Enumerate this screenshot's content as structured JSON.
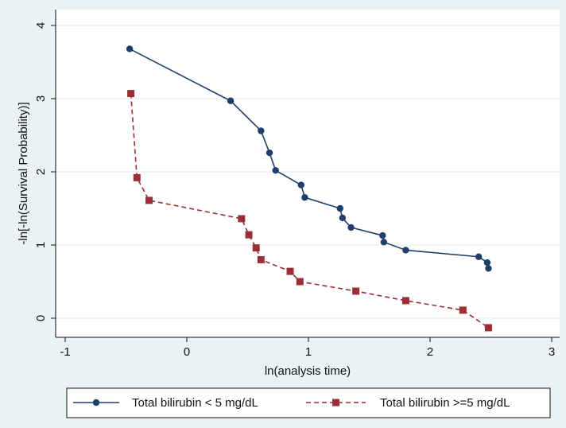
{
  "chart_data": {
    "type": "line",
    "xlabel": "ln(analysis time)",
    "ylabel": "-ln[-ln(Survival Probability)]",
    "xlim": [
      -1.1,
      3.05
    ],
    "ylim": [
      -0.3,
      4.1
    ],
    "xticks": [
      -1,
      0,
      1,
      2,
      3
    ],
    "yticks": [
      0,
      1,
      2,
      3,
      4
    ],
    "grid": "horizontal",
    "legend_position": "bottom",
    "series": [
      {
        "name": "Total bilirubin <  5 mg/dL",
        "color": "#1f3f6b",
        "line_style": "solid",
        "marker": "circle",
        "step": true,
        "x": [
          -0.47,
          0.36,
          0.61,
          0.68,
          0.73,
          0.94,
          0.97,
          1.26,
          1.28,
          1.35,
          1.61,
          1.62,
          1.8,
          2.4,
          2.47,
          2.48
        ],
        "y": [
          3.68,
          2.97,
          2.56,
          2.26,
          2.02,
          1.82,
          1.65,
          1.5,
          1.37,
          1.24,
          1.13,
          1.04,
          0.93,
          0.84,
          0.76,
          0.68
        ]
      },
      {
        "name": "Total bilirubin >=5 mg/dL",
        "color": "#9b2e37",
        "line_style": "dashed",
        "marker": "square",
        "step": true,
        "x": [
          -0.46,
          -0.41,
          -0.31,
          0.45,
          0.51,
          0.57,
          0.61,
          0.85,
          0.93,
          1.39,
          1.8,
          2.27,
          2.48
        ],
        "y": [
          3.07,
          1.92,
          1.61,
          1.36,
          1.14,
          0.96,
          0.8,
          0.64,
          0.5,
          0.37,
          0.24,
          0.11,
          -0.13
        ]
      }
    ]
  }
}
